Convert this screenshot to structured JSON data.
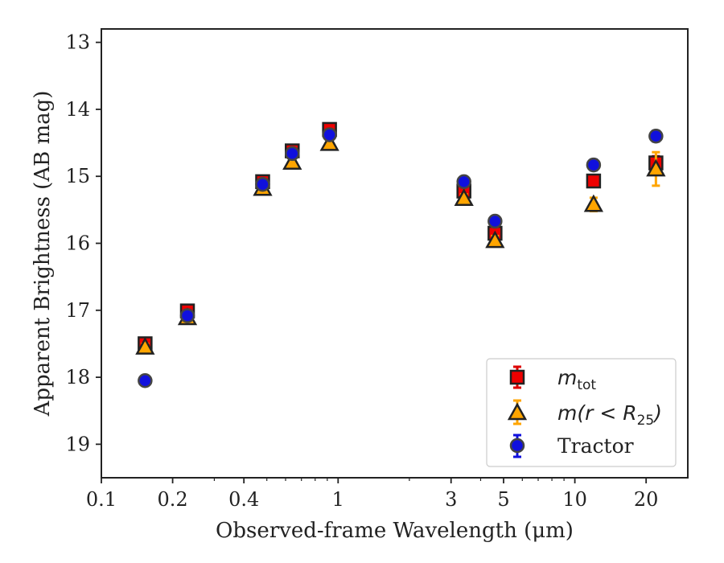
{
  "chart_data": {
    "type": "scatter",
    "xlabel": "Observed-frame Wavelength (μm)",
    "ylabel": "Apparent Brightness (AB mag)",
    "xscale": "log",
    "yaxis_inverted": true,
    "xlim": [
      0.1,
      30
    ],
    "ylim": [
      19.5,
      12.8
    ],
    "x_ticks": [
      0.1,
      0.2,
      0.4,
      1,
      3,
      5,
      10,
      20
    ],
    "x_tick_labels": [
      "0.1",
      "0.2",
      "0.4",
      "1",
      "3",
      "5",
      "10",
      "20"
    ],
    "y_ticks": [
      13,
      14,
      15,
      16,
      17,
      18,
      19
    ],
    "y_tick_labels": [
      "13",
      "14",
      "15",
      "16",
      "17",
      "18",
      "19"
    ],
    "grid": false,
    "legend_position": "lower-right",
    "series": [
      {
        "key": "mtot",
        "name": "m_tot",
        "marker": "square",
        "fill": "#ee0000",
        "errcolor": "#dd0000",
        "x": [
          0.153,
          0.231,
          0.48,
          0.64,
          0.92,
          3.4,
          4.6,
          12.0,
          22.0
        ],
        "y": [
          17.5,
          17.01,
          15.08,
          14.62,
          14.3,
          15.22,
          15.85,
          15.07,
          14.8
        ],
        "yerr": [
          0.05,
          0.04,
          0.03,
          0.03,
          0.03,
          0.05,
          0.06,
          0.07,
          0.1
        ]
      },
      {
        "key": "mr25",
        "name": "m(r < R25)",
        "marker": "triangle",
        "fill": "#ffa500",
        "errcolor": "#ffa500",
        "x": [
          0.153,
          0.231,
          0.48,
          0.64,
          0.92,
          3.4,
          4.6,
          12.0,
          22.0
        ],
        "y": [
          17.55,
          17.11,
          15.18,
          14.79,
          14.51,
          15.33,
          15.96,
          15.42,
          14.89
        ],
        "yerr": [
          0.05,
          0.05,
          0.04,
          0.04,
          0.04,
          0.06,
          0.07,
          0.1,
          0.25
        ]
      },
      {
        "key": "tractor",
        "name": "Tractor",
        "marker": "circle",
        "fill": "#1010dd",
        "errcolor": "#1010dd",
        "x": [
          0.153,
          0.231,
          0.48,
          0.64,
          0.92,
          3.4,
          4.6,
          12.0,
          22.0
        ],
        "y": [
          18.05,
          17.08,
          15.12,
          14.66,
          14.38,
          15.08,
          15.67,
          14.83,
          14.4
        ],
        "yerr": [
          0.07,
          0.05,
          0.04,
          0.04,
          0.04,
          0.05,
          0.07,
          0.08,
          0.08
        ]
      }
    ]
  },
  "legend": {
    "mtot_main": "m",
    "mtot_sub": "tot",
    "mr25_prefix": "m(r < R",
    "mr25_sub": "25",
    "mr25_suffix": ")",
    "tractor": "Tractor"
  }
}
